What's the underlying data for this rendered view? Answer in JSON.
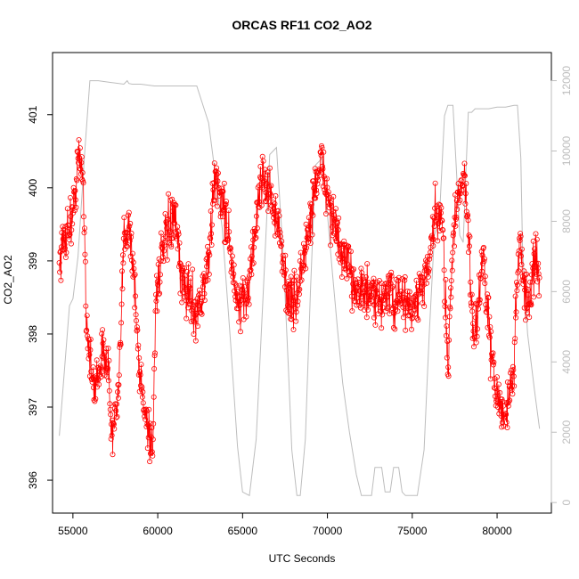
{
  "chart_data": {
    "type": "scatter",
    "title": "ORCAS RF11 CO2_AO2",
    "xlabel": "UTC Seconds",
    "ylabel": "CO2_AO2",
    "xlim": [
      53800,
      83200
    ],
    "ylim": [
      395.55,
      401.85
    ],
    "x_ticks": [
      "55000",
      "60000",
      "65000",
      "70000",
      "75000",
      "80000"
    ],
    "y_ticks": [
      "396",
      "397",
      "398",
      "399",
      "400",
      "401"
    ],
    "y2lim": [
      -300,
      12800
    ],
    "y2_ticks": [
      "0",
      "2000",
      "4000",
      "6000",
      "8000",
      "10000",
      "12000"
    ],
    "grid": false,
    "legend": "none",
    "colors": {
      "co2": "#ff0000",
      "altitude": "#bdbdbd"
    },
    "altitude_series": {
      "x": [
        54200,
        54800,
        55000,
        55300,
        55700,
        56000,
        56500,
        57200,
        58000,
        58200,
        58300,
        58500,
        59000,
        59800,
        60500,
        61200,
        61800,
        62300,
        63000,
        63800,
        64300,
        64700,
        65000,
        65400,
        65800,
        66200,
        66600,
        67000,
        67400,
        67700,
        67900,
        68200,
        68400,
        68700,
        69000,
        69300,
        69700,
        70000,
        70300,
        70600,
        70900,
        71300,
        71700,
        72000,
        72400,
        72600,
        72800,
        73200,
        73400,
        73700,
        73900,
        74200,
        74400,
        74600,
        75000,
        75300,
        75700,
        76000,
        76300,
        76600,
        76900,
        77100,
        77400,
        77600,
        77800,
        78000,
        78300,
        78500,
        78700,
        78900,
        79100,
        79500,
        80000,
        80500,
        81000,
        81200,
        81400,
        81500,
        81800,
        82200,
        82500
      ],
      "y": [
        1900,
        5600,
        5800,
        7000,
        10000,
        12000,
        12000,
        11950,
        11900,
        12000,
        11920,
        11900,
        11900,
        11850,
        11850,
        11850,
        11850,
        11850,
        10800,
        7800,
        4500,
        1600,
        300,
        200,
        1800,
        5800,
        9900,
        10100,
        7000,
        3800,
        1500,
        200,
        200,
        1800,
        6000,
        9600,
        9800,
        8200,
        6500,
        4900,
        3400,
        2000,
        800,
        200,
        200,
        200,
        1000,
        1000,
        300,
        300,
        1000,
        1000,
        300,
        200,
        200,
        200,
        1500,
        4800,
        7600,
        8100,
        11000,
        11300,
        11300,
        9500,
        7600,
        7400,
        11100,
        11100,
        11200,
        11200,
        11200,
        11200,
        11250,
        11250,
        11300,
        11300,
        9800,
        7200,
        4800,
        3200,
        2100
      ]
    },
    "co2_trend": {
      "x": [
        54200,
        54600,
        55000,
        55300,
        55600,
        55800,
        56200,
        56600,
        57000,
        57300,
        57700,
        58000,
        58300,
        58600,
        58900,
        59300,
        59700,
        59900,
        60200,
        60600,
        61000,
        61400,
        61800,
        62200,
        62600,
        63000,
        63400,
        63800,
        64200,
        64500,
        64900,
        65300,
        65700,
        66100,
        66500,
        66900,
        67300,
        67700,
        68100,
        68500,
        68900,
        69300,
        69700,
        70000,
        70400,
        70800,
        71200,
        71600,
        72000,
        72500,
        73000,
        73500,
        74000,
        74500,
        75000,
        75500,
        76000,
        76400,
        76800,
        77100,
        77400,
        77700,
        78000,
        78300,
        78600,
        78900,
        79200,
        79500,
        79800,
        80100,
        80400,
        80700,
        81000,
        81300,
        81600,
        81900,
        82200,
        82500
      ],
      "y": [
        399.0,
        399.4,
        399.6,
        400.4,
        400.2,
        398.2,
        397.2,
        397.6,
        397.8,
        396.6,
        397.1,
        399.3,
        399.6,
        398.8,
        397.5,
        396.9,
        396.4,
        398.6,
        399.0,
        399.4,
        399.6,
        398.7,
        398.6,
        398.3,
        398.5,
        399.0,
        400.2,
        399.8,
        399.4,
        398.6,
        398.3,
        398.6,
        399.3,
        400.2,
        400.0,
        399.7,
        399.1,
        398.5,
        398.4,
        398.9,
        399.4,
        400.1,
        400.3,
        399.9,
        399.5,
        399.1,
        398.9,
        398.7,
        398.6,
        398.5,
        398.4,
        398.6,
        398.4,
        398.5,
        398.3,
        398.6,
        398.9,
        399.7,
        399.4,
        397.6,
        399.3,
        399.9,
        400.3,
        399.4,
        398.0,
        398.4,
        399.1,
        398.1,
        397.4,
        397.1,
        396.8,
        397.1,
        397.6,
        399.4,
        398.6,
        398.4,
        399.0,
        398.8
      ]
    }
  }
}
